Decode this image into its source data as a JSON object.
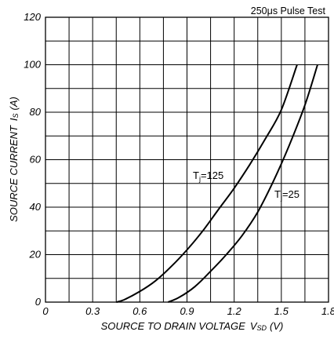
{
  "chart_data": {
    "type": "line",
    "note": "250μs Pulse Test",
    "xlabel": "SOURCE TO DRAIN VOLTAGE",
    "xlabel_symbol": "V",
    "xlabel_sub": "SD",
    "xlabel_unit": "(V)",
    "ylabel": "SOURCE CURRENT",
    "ylabel_symbol": "I",
    "ylabel_sub": "S",
    "ylabel_unit": "(A)",
    "xlim": [
      0,
      1.8
    ],
    "ylim": [
      0,
      120
    ],
    "x_ticks": [
      "0",
      "0.3",
      "0.6",
      "0.9",
      "1.2",
      "1.5",
      "1.8"
    ],
    "y_ticks": [
      "0",
      "20",
      "40",
      "60",
      "80",
      "100",
      "120"
    ],
    "grid": true,
    "series": [
      {
        "name": "Tj=125",
        "label_main": "T",
        "label_sub": "j",
        "label_value": "=125",
        "x": [
          0.45,
          0.5,
          0.6,
          0.7,
          0.8,
          0.9,
          1.0,
          1.1,
          1.2,
          1.3,
          1.4,
          1.5,
          1.6
        ],
        "y": [
          0,
          1,
          4.5,
          9,
          15,
          22,
          30,
          39,
          48,
          58,
          69,
          81,
          100
        ]
      },
      {
        "name": "Tj=25",
        "label_main": "T",
        "label_sub": "j",
        "label_value": "=25",
        "x": [
          0.78,
          0.85,
          0.95,
          1.05,
          1.15,
          1.25,
          1.35,
          1.45,
          1.55,
          1.65,
          1.73
        ],
        "y": [
          0,
          2,
          6.5,
          13,
          20,
          28,
          38,
          51,
          66,
          83,
          100
        ]
      }
    ]
  }
}
